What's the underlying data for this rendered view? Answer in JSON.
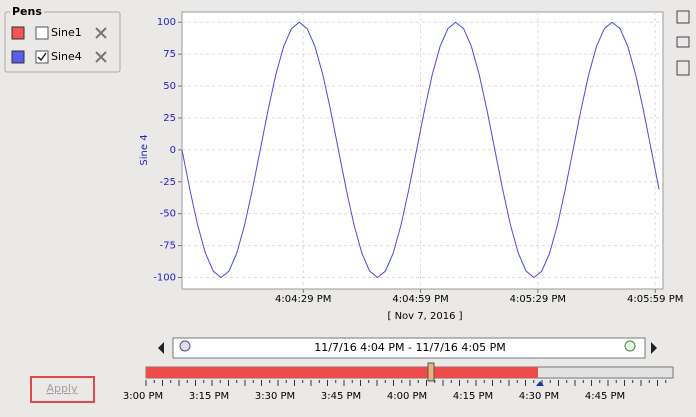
{
  "pens": {
    "title": "Pens",
    "items": [
      {
        "name": "Sine1",
        "color": "#f25555",
        "checked": false
      },
      {
        "name": "Sine4",
        "color": "#5b5bef",
        "checked": true
      }
    ]
  },
  "chart_data": {
    "type": "line",
    "y_label": "Sine 4",
    "x_label": "[ Nov 7, 2016 ]",
    "x": [
      "4:03:58 PM",
      "4:04:00 PM",
      "4:04:02 PM",
      "4:04:04 PM",
      "4:04:06 PM",
      "4:04:08 PM",
      "4:04:10 PM",
      "4:04:12 PM",
      "4:04:14 PM",
      "4:04:16 PM",
      "4:04:18 PM",
      "4:04:20 PM",
      "4:04:22 PM",
      "4:04:24 PM",
      "4:04:26 PM",
      "4:04:28 PM",
      "4:04:30 PM",
      "4:04:32 PM",
      "4:04:34 PM",
      "4:04:36 PM",
      "4:04:38 PM",
      "4:04:40 PM",
      "4:04:42 PM",
      "4:04:44 PM",
      "4:04:46 PM",
      "4:04:48 PM",
      "4:04:50 PM",
      "4:04:52 PM",
      "4:04:54 PM",
      "4:04:56 PM",
      "4:04:58 PM",
      "4:05:00 PM",
      "4:05:02 PM",
      "4:05:04 PM",
      "4:05:06 PM",
      "4:05:08 PM",
      "4:05:10 PM",
      "4:05:12 PM",
      "4:05:14 PM",
      "4:05:16 PM",
      "4:05:18 PM",
      "4:05:20 PM",
      "4:05:22 PM",
      "4:05:24 PM",
      "4:05:26 PM",
      "4:05:28 PM",
      "4:05:30 PM",
      "4:05:32 PM",
      "4:05:34 PM",
      "4:05:36 PM",
      "4:05:38 PM",
      "4:05:40 PM",
      "4:05:42 PM",
      "4:05:44 PM",
      "4:05:46 PM",
      "4:05:48 PM",
      "4:05:50 PM",
      "4:05:52 PM",
      "4:05:54 PM",
      "4:05:56 PM",
      "4:05:58 PM",
      "4:06:00 PM"
    ],
    "series": [
      {
        "color": "#4b4bdc",
        "values": [
          0,
          -31,
          -59,
          -81,
          -95,
          -100,
          -95,
          -81,
          -59,
          -31,
          0,
          31,
          59,
          81,
          95,
          100,
          95,
          81,
          59,
          31,
          0,
          -31,
          -59,
          -81,
          -95,
          -100,
          -95,
          -81,
          -59,
          -31,
          0,
          31,
          59,
          81,
          95,
          100,
          95,
          81,
          59,
          31,
          0,
          -31,
          -59,
          -81,
          -95,
          -100,
          -95,
          -81,
          -59,
          -31,
          0,
          31,
          59,
          81,
          95,
          100,
          95,
          81,
          59,
          31,
          0,
          -31
        ]
      }
    ],
    "xlim": [
      "4:03:58 PM",
      "4:06:01 PM"
    ],
    "xticks": [
      "4:04:29 PM",
      "4:04:59 PM",
      "4:05:29 PM",
      "4:05:59 PM"
    ],
    "ylim": [
      -109,
      108
    ],
    "yticks": [
      -100,
      -75,
      -50,
      -25,
      0,
      25,
      50,
      75,
      100
    ],
    "grid": true
  },
  "range": {
    "text": "11/7/16 4:04 PM - 11/7/16 4:05 PM"
  },
  "timeline": {
    "ticks": [
      "3:00 PM",
      "3:15 PM",
      "3:30 PM",
      "3:45 PM",
      "4:00 PM",
      "4:15 PM",
      "4:30 PM",
      "4:45 PM"
    ]
  },
  "apply": {
    "label": "Apply"
  }
}
